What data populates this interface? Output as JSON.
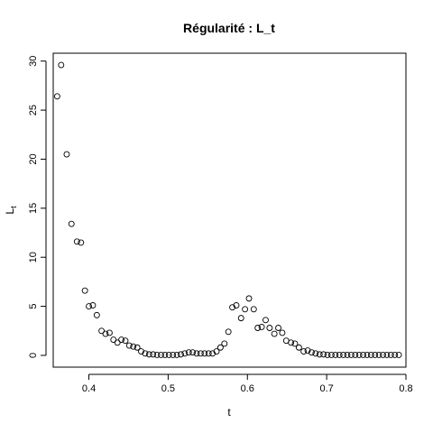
{
  "chart_data": {
    "type": "scatter",
    "title": "Régularité : L_t",
    "xlabel": "t",
    "ylabel_main": "L",
    "ylabel_sub": "t",
    "xlim": [
      0.355,
      0.8
    ],
    "ylim": [
      -1.2,
      30.8
    ],
    "xticks": [
      0.4,
      0.5,
      0.6,
      0.7,
      0.8
    ],
    "xtick_labels": [
      "0.4",
      "0.5",
      "0.6",
      "0.7",
      "0.8"
    ],
    "yticks": [
      0,
      5,
      10,
      15,
      20,
      25,
      30
    ],
    "ytick_labels": [
      "0",
      "5",
      "10",
      "15",
      "20",
      "25",
      "30"
    ],
    "grid": false,
    "legend": "none",
    "marker": "open-circle",
    "x": [
      0.36,
      0.365,
      0.372,
      0.378,
      0.385,
      0.39,
      0.395,
      0.4,
      0.405,
      0.41,
      0.416,
      0.421,
      0.426,
      0.431,
      0.436,
      0.441,
      0.446,
      0.451,
      0.456,
      0.461,
      0.466,
      0.471,
      0.476,
      0.481,
      0.486,
      0.491,
      0.496,
      0.501,
      0.506,
      0.511,
      0.516,
      0.521,
      0.526,
      0.531,
      0.536,
      0.541,
      0.546,
      0.551,
      0.556,
      0.561,
      0.566,
      0.571,
      0.576,
      0.581,
      0.586,
      0.592,
      0.597,
      0.602,
      0.608,
      0.613,
      0.618,
      0.623,
      0.628,
      0.634,
      0.639,
      0.644,
      0.649,
      0.655,
      0.66,
      0.665,
      0.671,
      0.676,
      0.681,
      0.686,
      0.691,
      0.696,
      0.701,
      0.706,
      0.711,
      0.716,
      0.721,
      0.726,
      0.731,
      0.736,
      0.741,
      0.746,
      0.751,
      0.756,
      0.761,
      0.766,
      0.771,
      0.776,
      0.781,
      0.786,
      0.791
    ],
    "y": [
      26.4,
      29.6,
      20.5,
      13.4,
      11.6,
      11.5,
      6.6,
      5.0,
      5.1,
      4.1,
      2.5,
      2.2,
      2.3,
      1.6,
      1.3,
      1.6,
      1.5,
      1.0,
      0.9,
      0.8,
      0.4,
      0.2,
      0.1,
      0.1,
      0.05,
      0.05,
      0.05,
      0.05,
      0.05,
      0.05,
      0.1,
      0.2,
      0.3,
      0.3,
      0.2,
      0.2,
      0.2,
      0.2,
      0.2,
      0.4,
      0.8,
      1.2,
      2.4,
      4.9,
      5.1,
      3.8,
      4.7,
      5.8,
      4.7,
      2.8,
      2.9,
      3.6,
      2.8,
      2.2,
      2.8,
      2.3,
      1.5,
      1.3,
      1.2,
      0.8,
      0.4,
      0.5,
      0.3,
      0.2,
      0.1,
      0.1,
      0.05,
      0.05,
      0.05,
      0.05,
      0.05,
      0.05,
      0.05,
      0.05,
      0.05,
      0.05,
      0.05,
      0.05,
      0.05,
      0.05,
      0.05,
      0.05,
      0.05,
      0.05,
      0.05
    ]
  }
}
